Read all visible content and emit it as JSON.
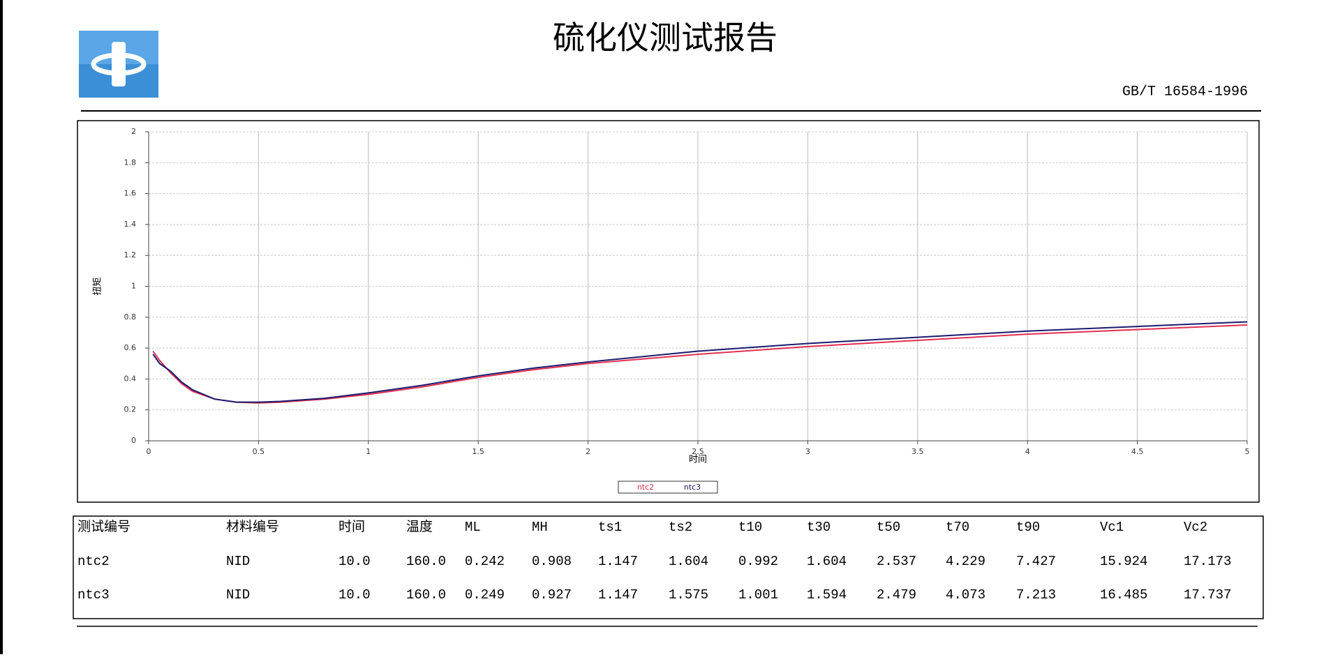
{
  "header": {
    "title": "硫化仪测试报告",
    "standard": "GB/T 16584-1996"
  },
  "chart_data": {
    "type": "line",
    "x_label": "时间",
    "y_label": "扭矩",
    "x": [
      0.02,
      0.05,
      0.1,
      0.15,
      0.2,
      0.3,
      0.4,
      0.5,
      0.6,
      0.8,
      1.0,
      1.25,
      1.5,
      1.75,
      2.0,
      2.5,
      3.0,
      3.5,
      4.0,
      4.5,
      5.0
    ],
    "series": [
      {
        "name": "ntc2",
        "color": "#e03050",
        "values": [
          0.58,
          0.52,
          0.44,
          0.37,
          0.32,
          0.27,
          0.25,
          0.245,
          0.25,
          0.27,
          0.3,
          0.35,
          0.41,
          0.46,
          0.5,
          0.56,
          0.61,
          0.65,
          0.69,
          0.72,
          0.75
        ]
      },
      {
        "name": "ntc3",
        "color": "#1a1a6e",
        "values": [
          0.56,
          0.5,
          0.45,
          0.38,
          0.33,
          0.27,
          0.25,
          0.25,
          0.255,
          0.275,
          0.31,
          0.36,
          0.42,
          0.47,
          0.51,
          0.58,
          0.63,
          0.67,
          0.71,
          0.74,
          0.77
        ]
      }
    ],
    "xlim": [
      0,
      5
    ],
    "ylim": [
      0,
      2
    ],
    "xticks": [
      0,
      0.5,
      1,
      1.5,
      2,
      2.5,
      3,
      3.5,
      4,
      4.5,
      5
    ],
    "yticks": [
      0,
      0.2,
      0.4,
      0.6,
      0.8,
      1,
      1.2,
      1.4,
      1.6,
      1.8,
      2
    ],
    "grid": true
  },
  "table": {
    "header": [
      "测试编号",
      "材料编号",
      "时间",
      "温度",
      "ML",
      "MH",
      "ts1",
      "ts2",
      "t10",
      "t30",
      "t50",
      "t70",
      "t90",
      "Vc1",
      "Vc2"
    ],
    "rows": [
      [
        "ntc2",
        "NID",
        "10.0",
        "160.0",
        "0.242",
        "0.908",
        "1.147",
        "1.604",
        "0.992",
        "1.604",
        "2.537",
        "4.229",
        "7.427",
        "15.924",
        "17.173"
      ],
      [
        "ntc3",
        "NID",
        "10.0",
        "160.0",
        "0.249",
        "0.927",
        "1.147",
        "1.575",
        "1.001",
        "1.594",
        "2.479",
        "4.073",
        "7.213",
        "16.485",
        "17.737"
      ]
    ]
  }
}
